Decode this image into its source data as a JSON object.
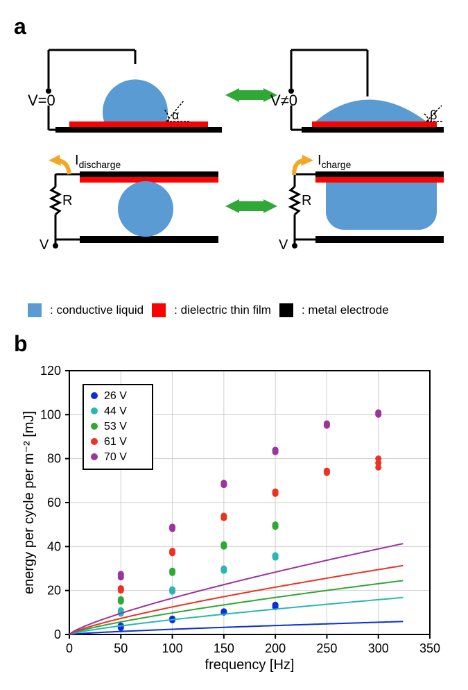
{
  "panelA": {
    "label": "a",
    "v0_label": "V=0",
    "vne0_label": "V≠0",
    "alpha": "α",
    "beta": "β",
    "i_discharge": "I",
    "i_discharge_sub": "discharge",
    "i_charge": "I",
    "i_charge_sub": "charge",
    "R": "R",
    "V": "V",
    "colors": {
      "liquid": "#5a9bd4",
      "dielectric": "#ff0000",
      "electrode": "#000000",
      "arrow_green": "#2fa836",
      "arrow_orange": "#f0a926"
    },
    "legend": {
      "liquid": ": conductive liquid",
      "dielectric": ": dielectric thin film",
      "electrode": ": metal electrode"
    }
  },
  "panelB": {
    "label": "b",
    "xlabel": "frequency [Hz]",
    "ylabel": "energy per cycle per m⁻² [mJ]",
    "xlim": [
      0,
      350
    ],
    "ylim": [
      0,
      120
    ],
    "xticks": [
      0,
      50,
      100,
      150,
      200,
      250,
      300,
      350
    ],
    "yticks": [
      0,
      20,
      40,
      60,
      80,
      100,
      120
    ],
    "grid_color": "#d0cece",
    "axis_color": "#000000",
    "label_fontsize": 20,
    "tick_fontsize": 18,
    "series": [
      {
        "label": "26 V",
        "color": "#0a2fd6",
        "points": [
          [
            50,
            3
          ],
          [
            50,
            3.5
          ],
          [
            50,
            4
          ],
          [
            100,
            7
          ],
          [
            100,
            7.2
          ],
          [
            100,
            6.5
          ],
          [
            150,
            10
          ],
          [
            150,
            10.2
          ],
          [
            150,
            10.5
          ],
          [
            200,
            12.5
          ],
          [
            200,
            13
          ],
          [
            200,
            13.5
          ]
        ],
        "curve_k": 0.065
      },
      {
        "label": "44 V",
        "color": "#2ab6b2",
        "points": [
          [
            50,
            10
          ],
          [
            50,
            11
          ],
          [
            50,
            9.5
          ],
          [
            100,
            19.5
          ],
          [
            100,
            20
          ],
          [
            100,
            20.5
          ],
          [
            150,
            29
          ],
          [
            150,
            29.5
          ],
          [
            150,
            30
          ],
          [
            200,
            35
          ],
          [
            200,
            35.5
          ],
          [
            200,
            36
          ]
        ],
        "curve_k": 0.185
      },
      {
        "label": "53 V",
        "color": "#2fa836",
        "points": [
          [
            50,
            15
          ],
          [
            50,
            15.5
          ],
          [
            50,
            16
          ],
          [
            100,
            28
          ],
          [
            100,
            28.5
          ],
          [
            100,
            29
          ],
          [
            150,
            40
          ],
          [
            150,
            40.5
          ],
          [
            150,
            41
          ],
          [
            200,
            49
          ],
          [
            200,
            49.5
          ],
          [
            200,
            50
          ]
        ],
        "curve_k": 0.27
      },
      {
        "label": "61 V",
        "color": "#ea3323",
        "points": [
          [
            50,
            20
          ],
          [
            50,
            20.5
          ],
          [
            50,
            21
          ],
          [
            100,
            37
          ],
          [
            100,
            37.5
          ],
          [
            100,
            38
          ],
          [
            150,
            53
          ],
          [
            150,
            53.5
          ],
          [
            150,
            54
          ],
          [
            200,
            64
          ],
          [
            200,
            64.5
          ],
          [
            200,
            65
          ],
          [
            250,
            74
          ],
          [
            250,
            74.5
          ],
          [
            250,
            73.5
          ],
          [
            300,
            76
          ],
          [
            300,
            78
          ],
          [
            300,
            80
          ]
        ],
        "curve_k": 0.345
      },
      {
        "label": "70 V",
        "color": "#9b349c",
        "points": [
          [
            50,
            26
          ],
          [
            50,
            27
          ],
          [
            50,
            27.5
          ],
          [
            100,
            48
          ],
          [
            100,
            48.5
          ],
          [
            100,
            49
          ],
          [
            150,
            68
          ],
          [
            150,
            68.5
          ],
          [
            150,
            69
          ],
          [
            200,
            83
          ],
          [
            200,
            83.5
          ],
          [
            200,
            84
          ],
          [
            250,
            95
          ],
          [
            250,
            95.5
          ],
          [
            250,
            96
          ],
          [
            300,
            100
          ],
          [
            300,
            100.5
          ],
          [
            300,
            101
          ]
        ],
        "curve_k": 0.455
      }
    ]
  }
}
